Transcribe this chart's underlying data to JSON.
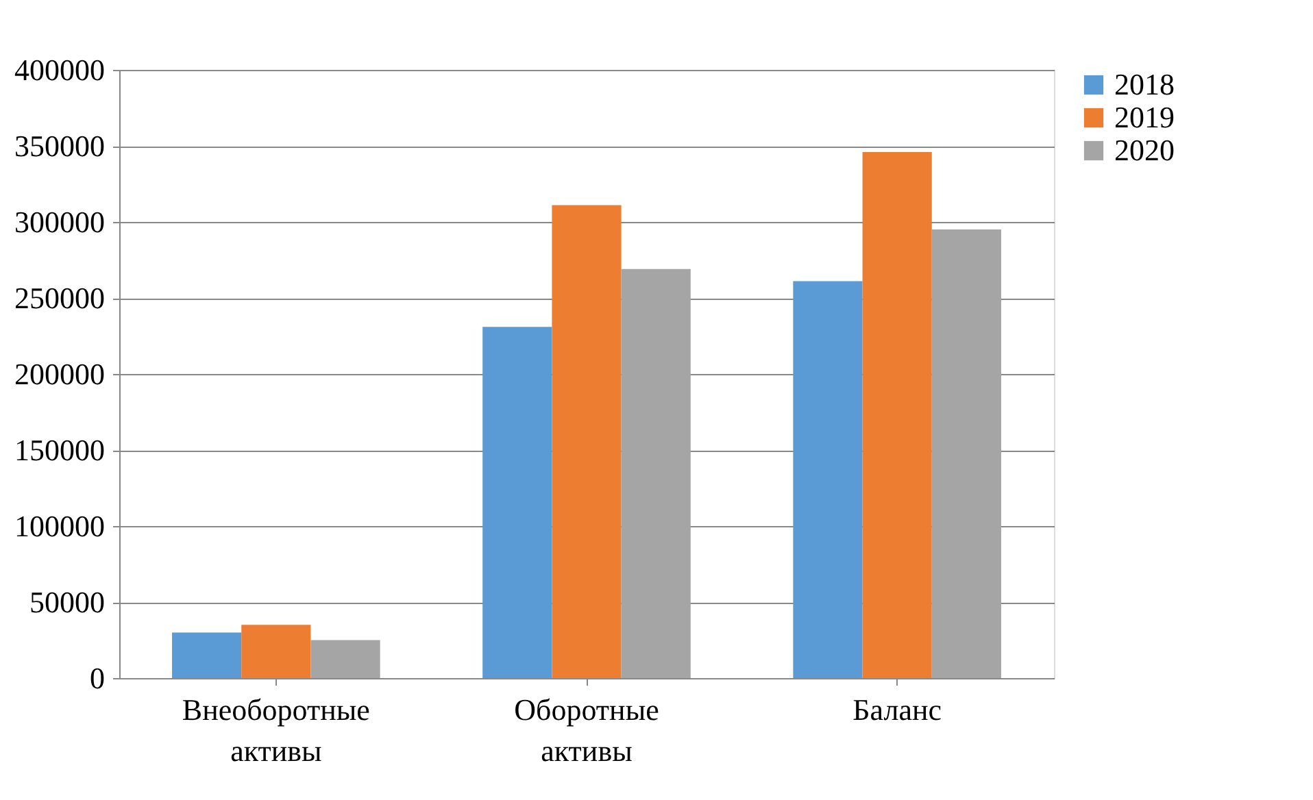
{
  "chart_data": {
    "type": "bar",
    "categories": [
      "Внеоборотные активы",
      "Оборотные активы",
      "Баланс"
    ],
    "series": [
      {
        "name": "2018",
        "color": "#5b9bd5",
        "values": [
          30000,
          231000,
          261000
        ]
      },
      {
        "name": "2019",
        "color": "#ed7d31",
        "values": [
          35000,
          311000,
          346000
        ]
      },
      {
        "name": "2020",
        "color": "#a5a5a5",
        "values": [
          25000,
          269000,
          295000
        ]
      }
    ],
    "ylim": [
      0,
      400000
    ],
    "yticks": [
      0,
      50000,
      100000,
      150000,
      200000,
      250000,
      300000,
      350000,
      400000
    ],
    "grid": "y",
    "legend": "right"
  }
}
